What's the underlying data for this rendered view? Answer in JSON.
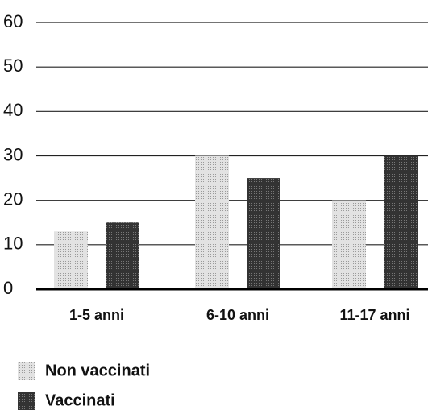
{
  "chart_data": {
    "type": "bar",
    "categories": [
      "1-5 anni",
      "6-10 anni",
      "11-17 anni"
    ],
    "series": [
      {
        "name": "Non vaccinati",
        "color": "#d2d2d2",
        "values": [
          13,
          30,
          20
        ]
      },
      {
        "name": "Vaccinati",
        "color": "#3c3c3c",
        "values": [
          15,
          25,
          30
        ]
      }
    ],
    "ylim": [
      0,
      60
    ],
    "yticks": [
      0,
      10,
      20,
      30,
      40,
      50,
      60
    ],
    "grid": true,
    "legend": "bottom-left"
  }
}
